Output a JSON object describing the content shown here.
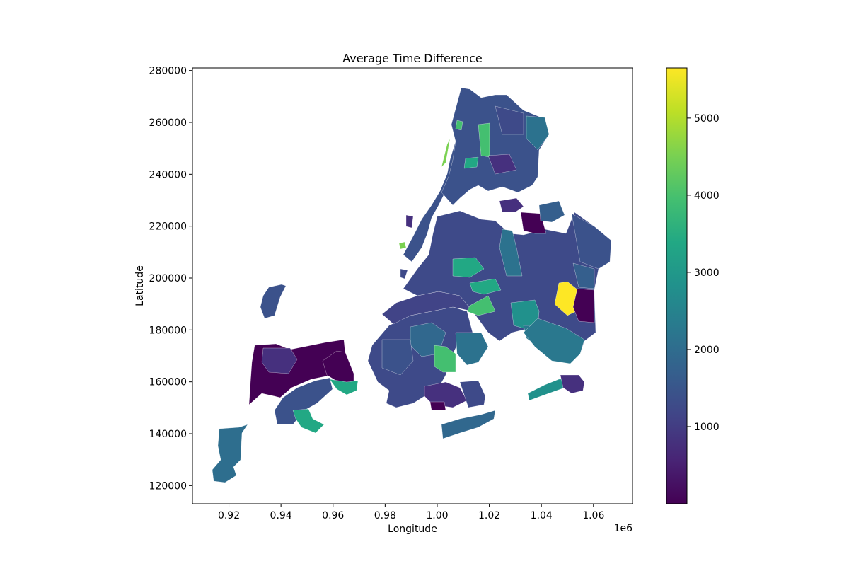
{
  "title": "Average Time Difference",
  "xaxis": {
    "label": "Longitude",
    "offset_text": "1e6",
    "ticks": [
      "0.92",
      "0.94",
      "0.96",
      "0.98",
      "1.00",
      "1.02",
      "1.04",
      "1.06"
    ],
    "tick_values": [
      0.92,
      0.94,
      0.96,
      0.98,
      1.0,
      1.02,
      1.04,
      1.06
    ],
    "range": [
      0.906,
      1.075
    ]
  },
  "yaxis": {
    "label": "Latitude",
    "ticks": [
      "120000",
      "140000",
      "160000",
      "180000",
      "200000",
      "220000",
      "240000",
      "260000",
      "280000"
    ],
    "tick_values": [
      120000,
      140000,
      160000,
      180000,
      200000,
      220000,
      240000,
      260000,
      280000
    ],
    "range": [
      113000,
      281000
    ]
  },
  "colorbar": {
    "colormap": "viridis",
    "range": [
      0,
      5650
    ],
    "ticks": [
      "1000",
      "2000",
      "3000",
      "4000",
      "5000"
    ],
    "tick_values": [
      1000,
      2000,
      3000,
      4000,
      5000
    ]
  },
  "chart_data": {
    "type": "heatmap",
    "subtype": "choropleth",
    "title": "Average Time Difference",
    "xlabel": "Longitude",
    "ylabel": "Latitude",
    "xlim": [
      906000,
      1075000
    ],
    "ylim": [
      113000,
      281000
    ],
    "colorbar_range": [
      0,
      5650
    ],
    "grid": false
  }
}
